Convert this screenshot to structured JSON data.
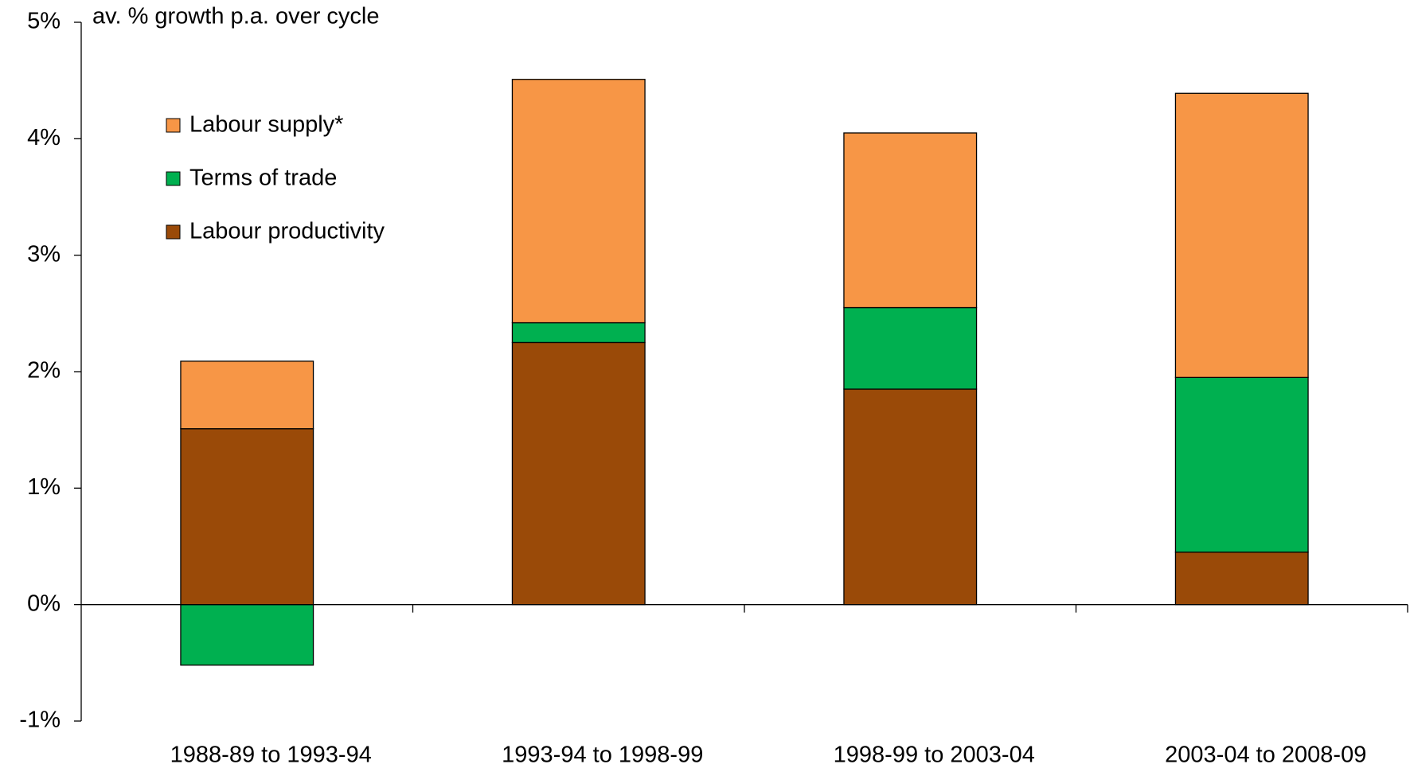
{
  "chart_data": {
    "type": "stacked_bar",
    "y_label": "av. % growth p.a.  over cycle",
    "categories": [
      "1988-89 to 1993-94",
      "1993-94 to 1998-99",
      "1998-99 to 2003-04",
      "2003-04 to 2008-09"
    ],
    "series": [
      {
        "name": "Labour productivity",
        "color": "#9a4a08",
        "values": [
          1.51,
          2.25,
          1.85,
          0.45
        ]
      },
      {
        "name": "Terms of trade",
        "color": "#00b050",
        "values": [
          -0.52,
          0.17,
          0.7,
          1.5
        ]
      },
      {
        "name": "Labour supply*",
        "color": "#f79646",
        "values": [
          0.58,
          2.09,
          1.5,
          2.44
        ]
      }
    ],
    "ylim": [
      -1,
      5
    ],
    "yticks": [
      {
        "value": -1,
        "label": "-1%"
      },
      {
        "value": 0,
        "label": "0%"
      },
      {
        "value": 1,
        "label": "1%"
      },
      {
        "value": 2,
        "label": "2%"
      },
      {
        "value": 3,
        "label": "3%"
      },
      {
        "value": 4,
        "label": "4%"
      },
      {
        "value": 5,
        "label": "5%"
      }
    ],
    "legend": "upper left",
    "grid": false
  }
}
